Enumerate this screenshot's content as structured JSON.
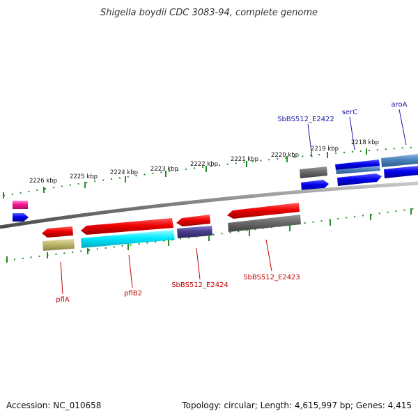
{
  "title": "Shigella boydii CDC 3083-94, complete genome",
  "footer": {
    "accession": "Accession: NC_010658",
    "summary": "Topology: circular; Length: 4,615,997 bp; Genes: 4,415"
  },
  "scale_ticks": [
    "2226 kbp",
    "2225 kbp",
    "2224 kbp",
    "2223 kbp",
    "2222 kbp",
    "2221 kbp",
    "2220 kbp",
    "2219 kbp",
    "2218 kbp"
  ],
  "gene_labels_top": [
    "SbBS512_E2422",
    "serC",
    "aroA"
  ],
  "gene_labels_bottom": [
    "pflA",
    "pflB2",
    "SbBS512_E2424",
    "SbBS512_E2423"
  ],
  "colors": {
    "backbone": "#7a7a7a",
    "tick": "#228b22",
    "label_top": "#1a1aa6",
    "label_bottom": "#c00000"
  }
}
